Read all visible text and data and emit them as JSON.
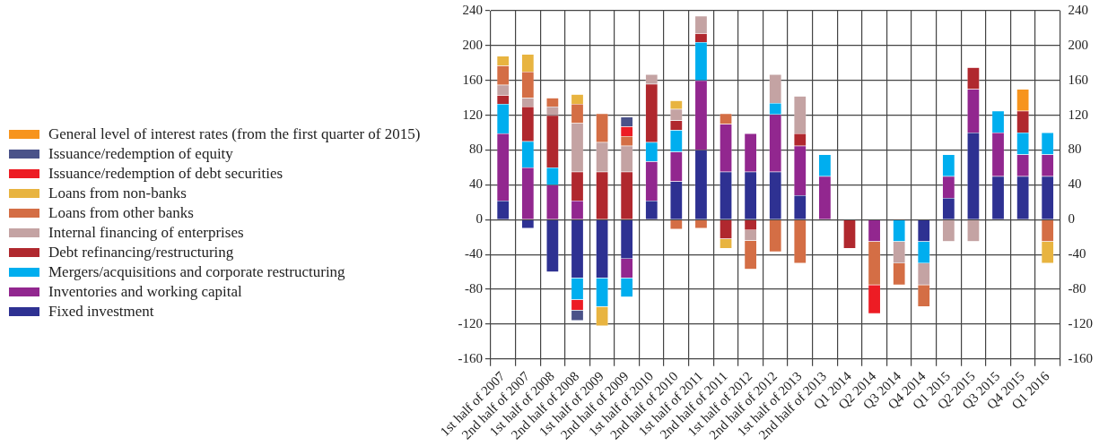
{
  "chart_data": {
    "type": "bar",
    "stacked": true,
    "legend": "left",
    "grid": true,
    "categories": [
      "1st half of 2007",
      "2nd half of 2007",
      "1st half of 2008",
      "2nd half of 2008",
      "1st half of 2009",
      "2nd half of 2009",
      "1st half of 2010",
      "2nd half of 2010",
      "1st half of 2011",
      "2nd half of 2011",
      "1st half of 2012",
      "2nd half of 2012",
      "1st half of 2013",
      "2nd half of 2013",
      "Q1 2014",
      "Q2 2014",
      "Q3 2014",
      "Q4 2014",
      "Q1 2015",
      "Q2 2015",
      "Q3 2015",
      "Q4 2015",
      "Q1 2016"
    ],
    "ylim": [
      -160,
      240
    ],
    "yticks": [
      -160,
      -120,
      -80,
      -40,
      0,
      40,
      80,
      120,
      160,
      200,
      240
    ],
    "y2lim": [
      -160,
      240
    ],
    "y2ticks": [
      -160,
      -120,
      -80,
      -40,
      0,
      40,
      80,
      120,
      160,
      200,
      240
    ],
    "series": [
      {
        "name": "Fixed investment",
        "color": "#2e3192",
        "values": [
          22,
          -10,
          -60,
          -67,
          -67,
          -45,
          22,
          44,
          80,
          55,
          55,
          55,
          28,
          null,
          null,
          null,
          null,
          -25,
          25,
          100,
          50,
          50,
          50
        ]
      },
      {
        "name": "Inventories and working capital",
        "color": "#92278f",
        "values": [
          77,
          60,
          40,
          22,
          null,
          -22,
          45,
          34,
          80,
          55,
          44,
          66,
          57,
          50,
          null,
          -25,
          null,
          null,
          25,
          50,
          50,
          25,
          25
        ]
      },
      {
        "name": "Mergers/acquisitions and corporate restructuring",
        "color": "#00aeef",
        "values": [
          34,
          30,
          20,
          -25,
          -33,
          -22,
          22,
          25,
          44,
          null,
          null,
          13,
          null,
          25,
          null,
          null,
          -25,
          -25,
          25,
          null,
          25,
          25,
          25
        ]
      },
      {
        "name": "Debt refinancing/restructuring",
        "color": "#b0282e",
        "values": [
          10,
          40,
          60,
          33,
          55,
          55,
          67,
          11,
          10,
          -22,
          -12,
          null,
          14,
          null,
          -33,
          null,
          null,
          null,
          null,
          25,
          null,
          25,
          null
        ]
      },
      {
        "name": "Internal financing of enterprises",
        "color": "#c4a3a3",
        "values": [
          12,
          10,
          10,
          56,
          34,
          30,
          11,
          13,
          20,
          null,
          -12,
          33,
          43,
          null,
          null,
          null,
          -25,
          -25,
          -25,
          -25,
          null,
          null,
          null
        ]
      },
      {
        "name": "Loans from other banks",
        "color": "#d46e45",
        "values": [
          22,
          30,
          10,
          22,
          33,
          11,
          null,
          -11,
          -10,
          12,
          -33,
          -37,
          -50,
          null,
          null,
          -50,
          -25,
          -25,
          null,
          null,
          null,
          null,
          -25
        ]
      },
      {
        "name": "Loans from non-banks",
        "color": "#e8b440",
        "values": [
          11,
          20,
          null,
          11,
          -22,
          null,
          null,
          10,
          null,
          -11,
          null,
          null,
          null,
          null,
          null,
          null,
          null,
          null,
          null,
          null,
          null,
          null,
          -25
        ]
      },
      {
        "name": "Issuance/redemption of debt securities",
        "color": "#ed1c24",
        "values": [
          null,
          null,
          null,
          -12,
          null,
          11,
          null,
          null,
          null,
          null,
          null,
          null,
          null,
          null,
          null,
          -33,
          null,
          null,
          null,
          null,
          null,
          null,
          null
        ]
      },
      {
        "name": "Issuance/redemption of equity",
        "color": "#4a5289",
        "values": [
          null,
          null,
          null,
          -12,
          null,
          11,
          null,
          null,
          null,
          null,
          null,
          null,
          null,
          null,
          null,
          null,
          null,
          null,
          null,
          null,
          null,
          null,
          null
        ]
      },
      {
        "name": "General level of interest rates (from the first quarter of 2015)",
        "color": "#f7941d",
        "values": [
          null,
          null,
          null,
          null,
          null,
          null,
          null,
          null,
          null,
          null,
          null,
          null,
          null,
          null,
          null,
          null,
          null,
          null,
          null,
          null,
          null,
          25,
          null
        ]
      }
    ]
  }
}
